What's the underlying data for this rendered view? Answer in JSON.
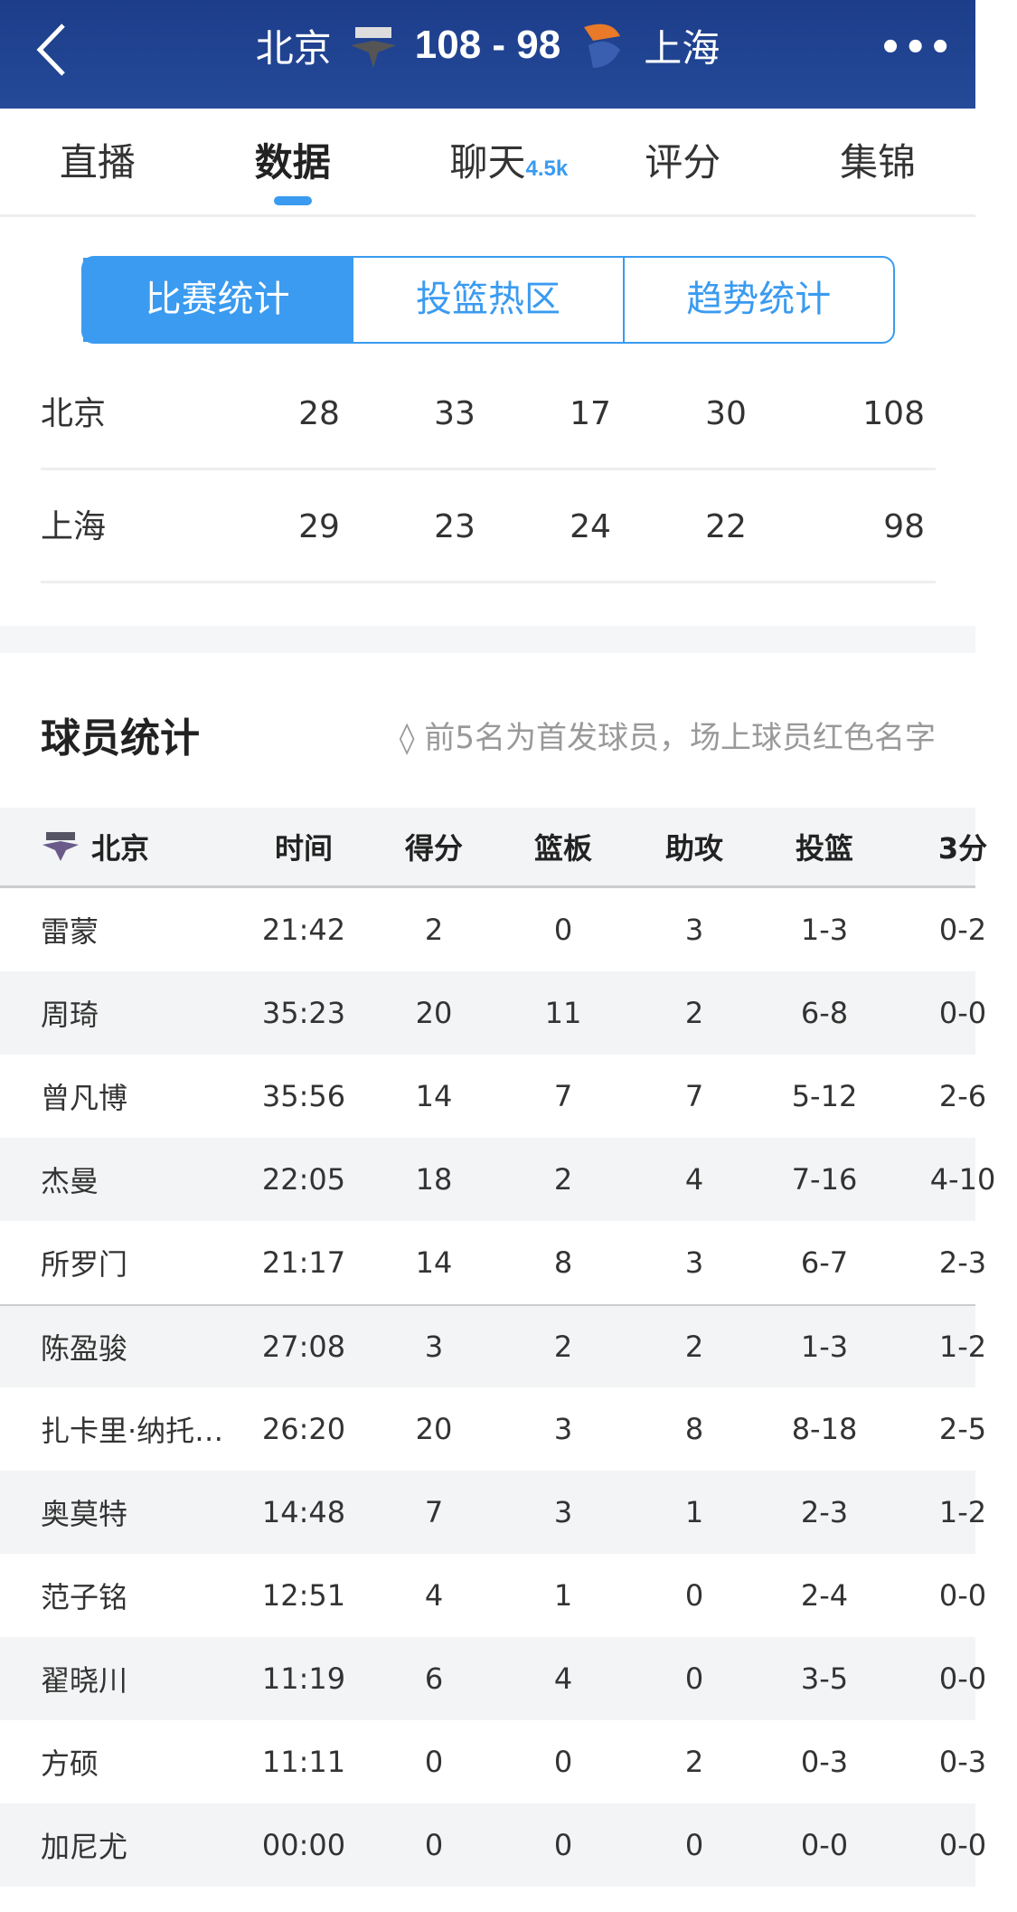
{
  "header": {
    "home_team": "北京",
    "score": "108 - 98",
    "away_team": "上海",
    "back_icon": "chevron-left-icon",
    "more_icon": "more-icon",
    "more_label": "•••"
  },
  "tabs": [
    {
      "label": "直播"
    },
    {
      "label": "数据",
      "active": true
    },
    {
      "label": "聊天",
      "badge": "4.5k"
    },
    {
      "label": "评分"
    },
    {
      "label": "集锦"
    }
  ],
  "segments": [
    {
      "label": "比赛统计",
      "active": true
    },
    {
      "label": "投篮热区"
    },
    {
      "label": "趋势统计"
    }
  ],
  "quarters": [
    {
      "team": "北京",
      "q": [
        "28",
        "33",
        "17",
        "30"
      ],
      "total": "108"
    },
    {
      "team": "上海",
      "q": [
        "29",
        "23",
        "24",
        "22"
      ],
      "total": "98"
    }
  ],
  "player_stats": {
    "title": "球员统计",
    "note": "前5名为首发球员，场上球员红色名字",
    "team": "北京",
    "columns": [
      "时间",
      "得分",
      "篮板",
      "助攻",
      "投篮",
      "3分"
    ],
    "rows": [
      {
        "name": "雷蒙",
        "v": [
          "21:42",
          "2",
          "0",
          "3",
          "1-3",
          "0-2"
        ]
      },
      {
        "name": "周琦",
        "v": [
          "35:23",
          "20",
          "11",
          "2",
          "6-8",
          "0-0"
        ]
      },
      {
        "name": "曾凡博",
        "v": [
          "35:56",
          "14",
          "7",
          "7",
          "5-12",
          "2-6"
        ]
      },
      {
        "name": "杰曼",
        "v": [
          "22:05",
          "18",
          "2",
          "4",
          "7-16",
          "4-10"
        ]
      },
      {
        "name": "所罗门",
        "v": [
          "21:17",
          "14",
          "8",
          "3",
          "6-7",
          "2-3"
        ]
      },
      {
        "name": "陈盈骏",
        "v": [
          "27:08",
          "3",
          "2",
          "2",
          "1-3",
          "1-2"
        ]
      },
      {
        "name": "扎卡里·纳托…",
        "v": [
          "26:20",
          "20",
          "3",
          "8",
          "8-18",
          "2-5"
        ]
      },
      {
        "name": "奥莫特",
        "v": [
          "14:48",
          "7",
          "3",
          "1",
          "2-3",
          "1-2"
        ]
      },
      {
        "name": "范子铭",
        "v": [
          "12:51",
          "4",
          "1",
          "0",
          "2-4",
          "0-0"
        ]
      },
      {
        "name": "翟晓川",
        "v": [
          "11:19",
          "6",
          "4",
          "0",
          "3-5",
          "0-0"
        ]
      },
      {
        "name": "方硕",
        "v": [
          "11:11",
          "0",
          "0",
          "2",
          "0-3",
          "0-3"
        ]
      },
      {
        "name": "加尼尤",
        "v": [
          "00:00",
          "0",
          "0",
          "0",
          "0-0",
          "0-0"
        ]
      }
    ]
  },
  "colors": {
    "header_bg": "#1d3d8a",
    "accent": "#3a9bf0"
  }
}
